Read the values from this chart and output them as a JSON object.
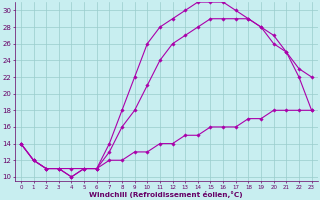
{
  "bg_color": "#c8eef0",
  "line_color": "#aa00aa",
  "grid_color": "#99cccc",
  "xlabel": "Windchill (Refroidissement éolien,°C)",
  "xlabel_color": "#660066",
  "tick_color": "#660066",
  "spine_color": "#660066",
  "xlim": [
    -0.5,
    23.5
  ],
  "ylim": [
    9.5,
    31.0
  ],
  "xticks": [
    0,
    1,
    2,
    3,
    4,
    5,
    6,
    7,
    8,
    9,
    10,
    11,
    12,
    13,
    14,
    15,
    16,
    17,
    18,
    19,
    20,
    21,
    22,
    23
  ],
  "yticks": [
    10,
    12,
    14,
    16,
    18,
    20,
    22,
    24,
    26,
    28,
    30
  ],
  "curve1_x": [
    0,
    1,
    2,
    3,
    4,
    5,
    6,
    7,
    8,
    9,
    10,
    11,
    12,
    13,
    14,
    15,
    16,
    17,
    18,
    19,
    20,
    21,
    22,
    23
  ],
  "curve1_y": [
    14,
    12,
    11,
    11,
    10,
    11,
    11,
    14,
    18,
    22,
    26,
    28,
    29,
    30,
    31,
    31,
    31,
    30,
    29,
    28,
    26,
    25,
    23,
    22
  ],
  "curve2_x": [
    0,
    1,
    2,
    3,
    4,
    5,
    6,
    7,
    8,
    9,
    10,
    11,
    12,
    13,
    14,
    15,
    16,
    17,
    18,
    19,
    20,
    21,
    22,
    23
  ],
  "curve2_y": [
    14,
    12,
    11,
    11,
    10,
    11,
    11,
    13,
    16,
    18,
    21,
    24,
    26,
    27,
    28,
    29,
    29,
    29,
    29,
    28,
    27,
    25,
    22,
    18
  ],
  "curve3_x": [
    0,
    1,
    2,
    3,
    4,
    5,
    6,
    7,
    8,
    9,
    10,
    11,
    12,
    13,
    14,
    15,
    16,
    17,
    18,
    19,
    20,
    21,
    22,
    23
  ],
  "curve3_y": [
    14,
    12,
    11,
    11,
    11,
    11,
    11,
    12,
    12,
    13,
    13,
    14,
    14,
    15,
    15,
    16,
    16,
    16,
    17,
    17,
    18,
    18,
    18,
    18
  ]
}
